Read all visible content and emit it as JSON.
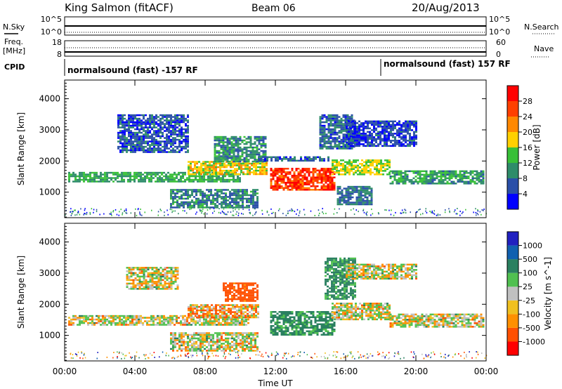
{
  "header": {
    "station": "King Salmon (fitACF)",
    "beam": "Beam 06",
    "date": "20/Aug/2013"
  },
  "status_panel": {
    "nsky_label": "N.Sky",
    "nsky_ticks": [
      "10^5",
      "10^0"
    ],
    "nsearch_label": "N.Search",
    "nsearch_ticks": [
      "10^5",
      "10^0"
    ],
    "freq_label": "Freq.",
    "freq_unit": "[MHz]",
    "freq_ticks": [
      "18",
      "8"
    ],
    "nave_label": "Nave",
    "nave_ticks": [
      "60",
      "0"
    ],
    "cpid_label": "CPID",
    "cpid_segments": [
      {
        "label": "normalsound (fast) -157 RF",
        "start_hour": 0,
        "end_hour": 18
      },
      {
        "label": "normalsound (fast) 157 RF",
        "start_hour": 18,
        "end_hour": 24
      }
    ]
  },
  "chart_data": [
    {
      "type": "heatmap",
      "name": "power",
      "xlabel": "Time UT",
      "ylabel": "Slant Range [km]",
      "xlim": [
        0,
        24
      ],
      "ylim": [
        180,
        4600
      ],
      "x_ticks": [
        "00:00",
        "04:00",
        "08:00",
        "12:00",
        "16:00",
        "20:00",
        "00:00"
      ],
      "y_ticks": [
        "1000",
        "2000",
        "3000",
        "4000"
      ],
      "colorbar_label": "Power [dB]",
      "colorbar_ticks": [
        "28",
        "24",
        "20",
        "16",
        "12",
        "8",
        "4"
      ],
      "colorbar_range": [
        0,
        32
      ],
      "colors": [
        "#0000ff",
        "#2a4fa8",
        "#2e8c6a",
        "#38c038",
        "#ffd000",
        "#ff8800",
        "#ff4000",
        "#ff0000"
      ],
      "regions": [
        {
          "t0": 0.2,
          "t1": 10.0,
          "r0": 1350,
          "r1": 1650,
          "level": 12
        },
        {
          "t0": 7.0,
          "t1": 11.5,
          "r0": 1550,
          "r1": 2000,
          "level": 18
        },
        {
          "t0": 11.7,
          "t1": 15.3,
          "r0": 1050,
          "r1": 1780,
          "level": 27
        },
        {
          "t0": 15.2,
          "t1": 18.5,
          "r0": 1550,
          "r1": 2050,
          "level": 16
        },
        {
          "t0": 18.5,
          "t1": 23.9,
          "r0": 1250,
          "r1": 1700,
          "level": 11
        },
        {
          "t0": 6.0,
          "t1": 11.0,
          "r0": 500,
          "r1": 1100,
          "level": 9
        },
        {
          "t0": 3.0,
          "t1": 7.0,
          "r0": 2300,
          "r1": 3500,
          "level": 6
        },
        {
          "t0": 8.5,
          "t1": 11.5,
          "r0": 2000,
          "r1": 2800,
          "level": 10
        },
        {
          "t0": 14.5,
          "t1": 16.5,
          "r0": 2400,
          "r1": 3500,
          "level": 7
        },
        {
          "t0": 16.0,
          "t1": 20.0,
          "r0": 2500,
          "r1": 3300,
          "level": 5
        },
        {
          "t0": 11.0,
          "t1": 15.0,
          "r0": 2000,
          "r1": 2150,
          "level": 6
        },
        {
          "t0": 15.5,
          "t1": 17.5,
          "r0": 600,
          "r1": 1200,
          "level": 8
        }
      ]
    },
    {
      "type": "heatmap",
      "name": "velocity",
      "xlabel": "Time UT",
      "ylabel": "Slant Range [km]",
      "xlim": [
        0,
        24
      ],
      "ylim": [
        180,
        4600
      ],
      "x_ticks": [
        "00:00",
        "04:00",
        "08:00",
        "12:00",
        "16:00",
        "20:00",
        "00:00"
      ],
      "y_ticks": [
        "1000",
        "2000",
        "3000",
        "4000"
      ],
      "colorbar_label": "Velocity [m s^-1]",
      "colorbar_ticks": [
        "1000",
        "500",
        "100",
        "25",
        "-25",
        "-100",
        "-500",
        "-1000"
      ],
      "colorbar_range": [
        -1200,
        1200
      ],
      "colors": [
        "#ff0000",
        "#ff5000",
        "#ff9000",
        "#f0c020",
        "#c0c0c0",
        "#50c050",
        "#2a8060",
        "#1060b0",
        "#2020c0"
      ],
      "regions": [
        {
          "t0": 0.2,
          "t1": 10.5,
          "r0": 1350,
          "r1": 1650,
          "vel": 0
        },
        {
          "t0": 7.0,
          "t1": 11.0,
          "r0": 1550,
          "r1": 2000,
          "vel": -60
        },
        {
          "t0": 11.7,
          "t1": 15.3,
          "r0": 1000,
          "r1": 1780,
          "vel": 150
        },
        {
          "t0": 15.2,
          "t1": 18.5,
          "r0": 1500,
          "r1": 2050,
          "vel": 0
        },
        {
          "t0": 18.5,
          "t1": 23.9,
          "r0": 1250,
          "r1": 1700,
          "vel": 0
        },
        {
          "t0": 6.0,
          "t1": 11.0,
          "r0": 500,
          "r1": 1100,
          "vel": 0
        },
        {
          "t0": 9.0,
          "t1": 11.0,
          "r0": 2100,
          "r1": 2700,
          "vel": -200
        },
        {
          "t0": 3.5,
          "t1": 6.5,
          "r0": 2500,
          "r1": 3200,
          "vel": 0
        },
        {
          "t0": 14.8,
          "t1": 16.5,
          "r0": 2200,
          "r1": 3500,
          "vel": 150
        },
        {
          "t0": 16.0,
          "t1": 20.0,
          "r0": 2800,
          "r1": 3300,
          "vel": 0
        }
      ]
    }
  ]
}
